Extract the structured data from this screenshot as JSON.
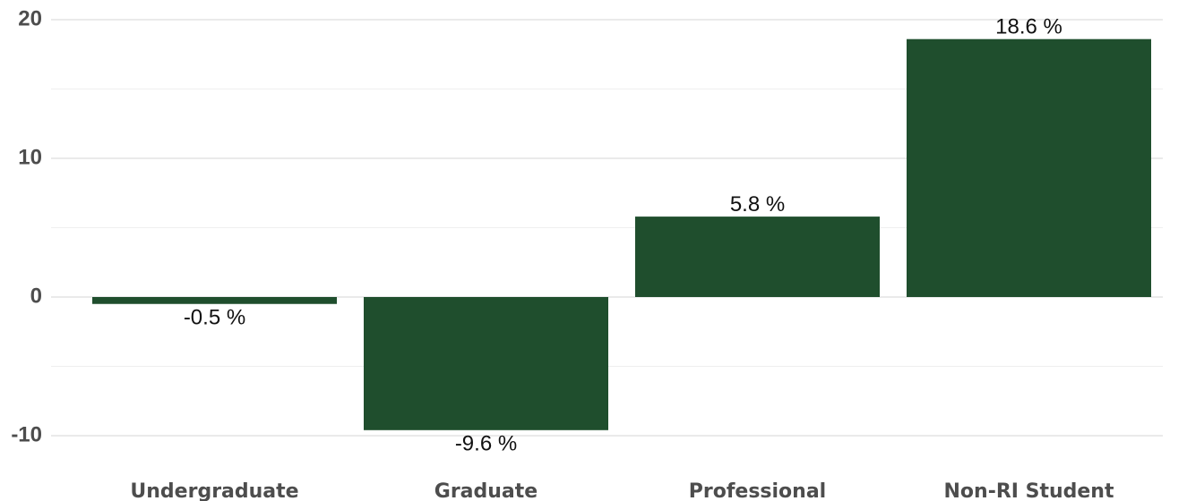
{
  "chart_data": {
    "type": "bar",
    "categories": [
      "Undergraduate",
      "Graduate",
      "Professional",
      "Non-RI Student"
    ],
    "values": [
      -0.5,
      -9.6,
      5.8,
      18.6
    ],
    "data_labels": [
      "-0.5 %",
      "-9.6 %",
      "5.8 %",
      "18.6 %"
    ],
    "title": "",
    "xlabel": "",
    "ylabel": "",
    "ylim": [
      -11.5,
      21
    ],
    "y_ticks": [
      -10,
      0,
      10,
      20
    ],
    "y_tick_labels": [
      "-10",
      "0",
      "10",
      "20"
    ],
    "grid": true,
    "legend": "none",
    "bar_color": "#1f4e2d"
  }
}
